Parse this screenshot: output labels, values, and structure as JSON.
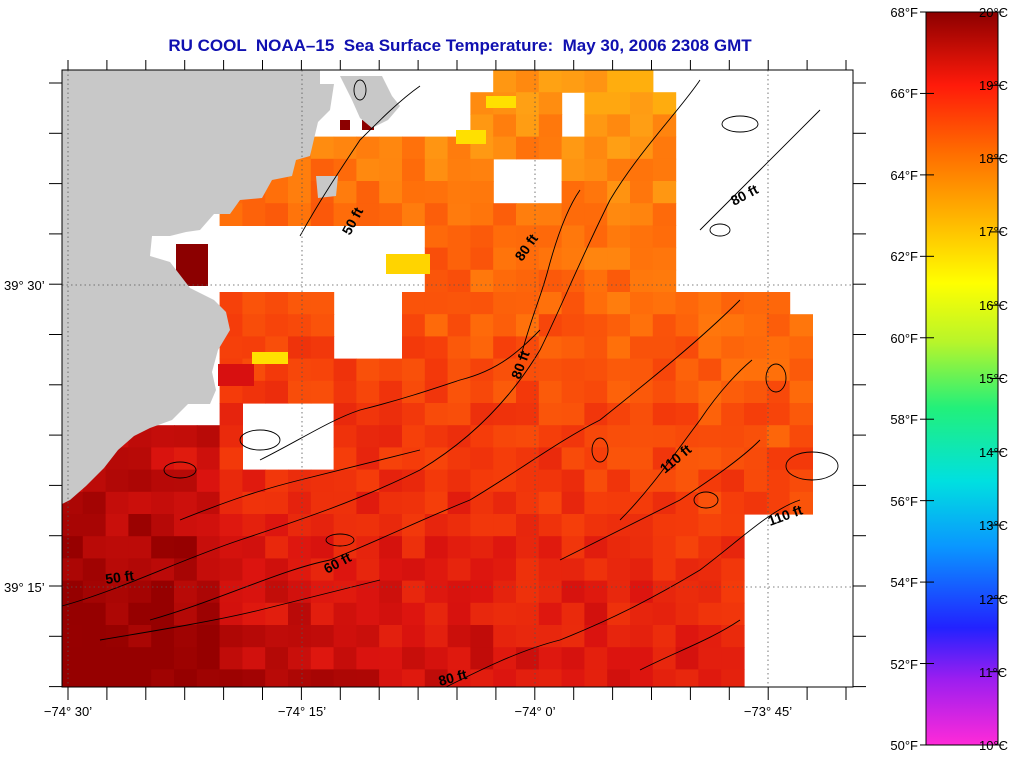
{
  "title": "RU COOL  NOAA–15  Sea Surface Temperature:  May 30, 2006 2308 GMT",
  "colors": {
    "land": "#c8c8c8",
    "nodata": "#ffffff",
    "frame": "#000000",
    "title": "#1010b0",
    "contour": "#000000"
  },
  "map": {
    "x_ticks": [
      "−74° 30’",
      "−74° 15’",
      "−74° 0’",
      "−73° 45’"
    ],
    "y_ticks": [
      "39° 30’",
      "39° 15’"
    ],
    "contour_labels": [
      "50 ft",
      "50 ft",
      "60 ft",
      "80 ft",
      "80 ft",
      "80 ft",
      "80 ft",
      "110 ft",
      "110 ft"
    ],
    "sst_pixels_legend": "coarse SST grid shown as colored blocks"
  },
  "colorbar": {
    "f_labels": [
      "68°F",
      "66°F",
      "64°F",
      "62°F",
      "60°F",
      "58°F",
      "56°F",
      "54°F",
      "52°F",
      "50°F"
    ],
    "c_labels": [
      "20°C",
      "19°C",
      "18°C",
      "17°C",
      "16°C",
      "15°C",
      "14°C",
      "13°C",
      "12°C",
      "11°C",
      "10°C"
    ],
    "stops": [
      "#ff2ad8",
      "#9b1ef0",
      "#2222ff",
      "#0a96ff",
      "#00e0e0",
      "#22f07a",
      "#b8f52a",
      "#ffff00",
      "#ffb400",
      "#ff6b00",
      "#ff1a0a",
      "#8c0000"
    ]
  }
}
